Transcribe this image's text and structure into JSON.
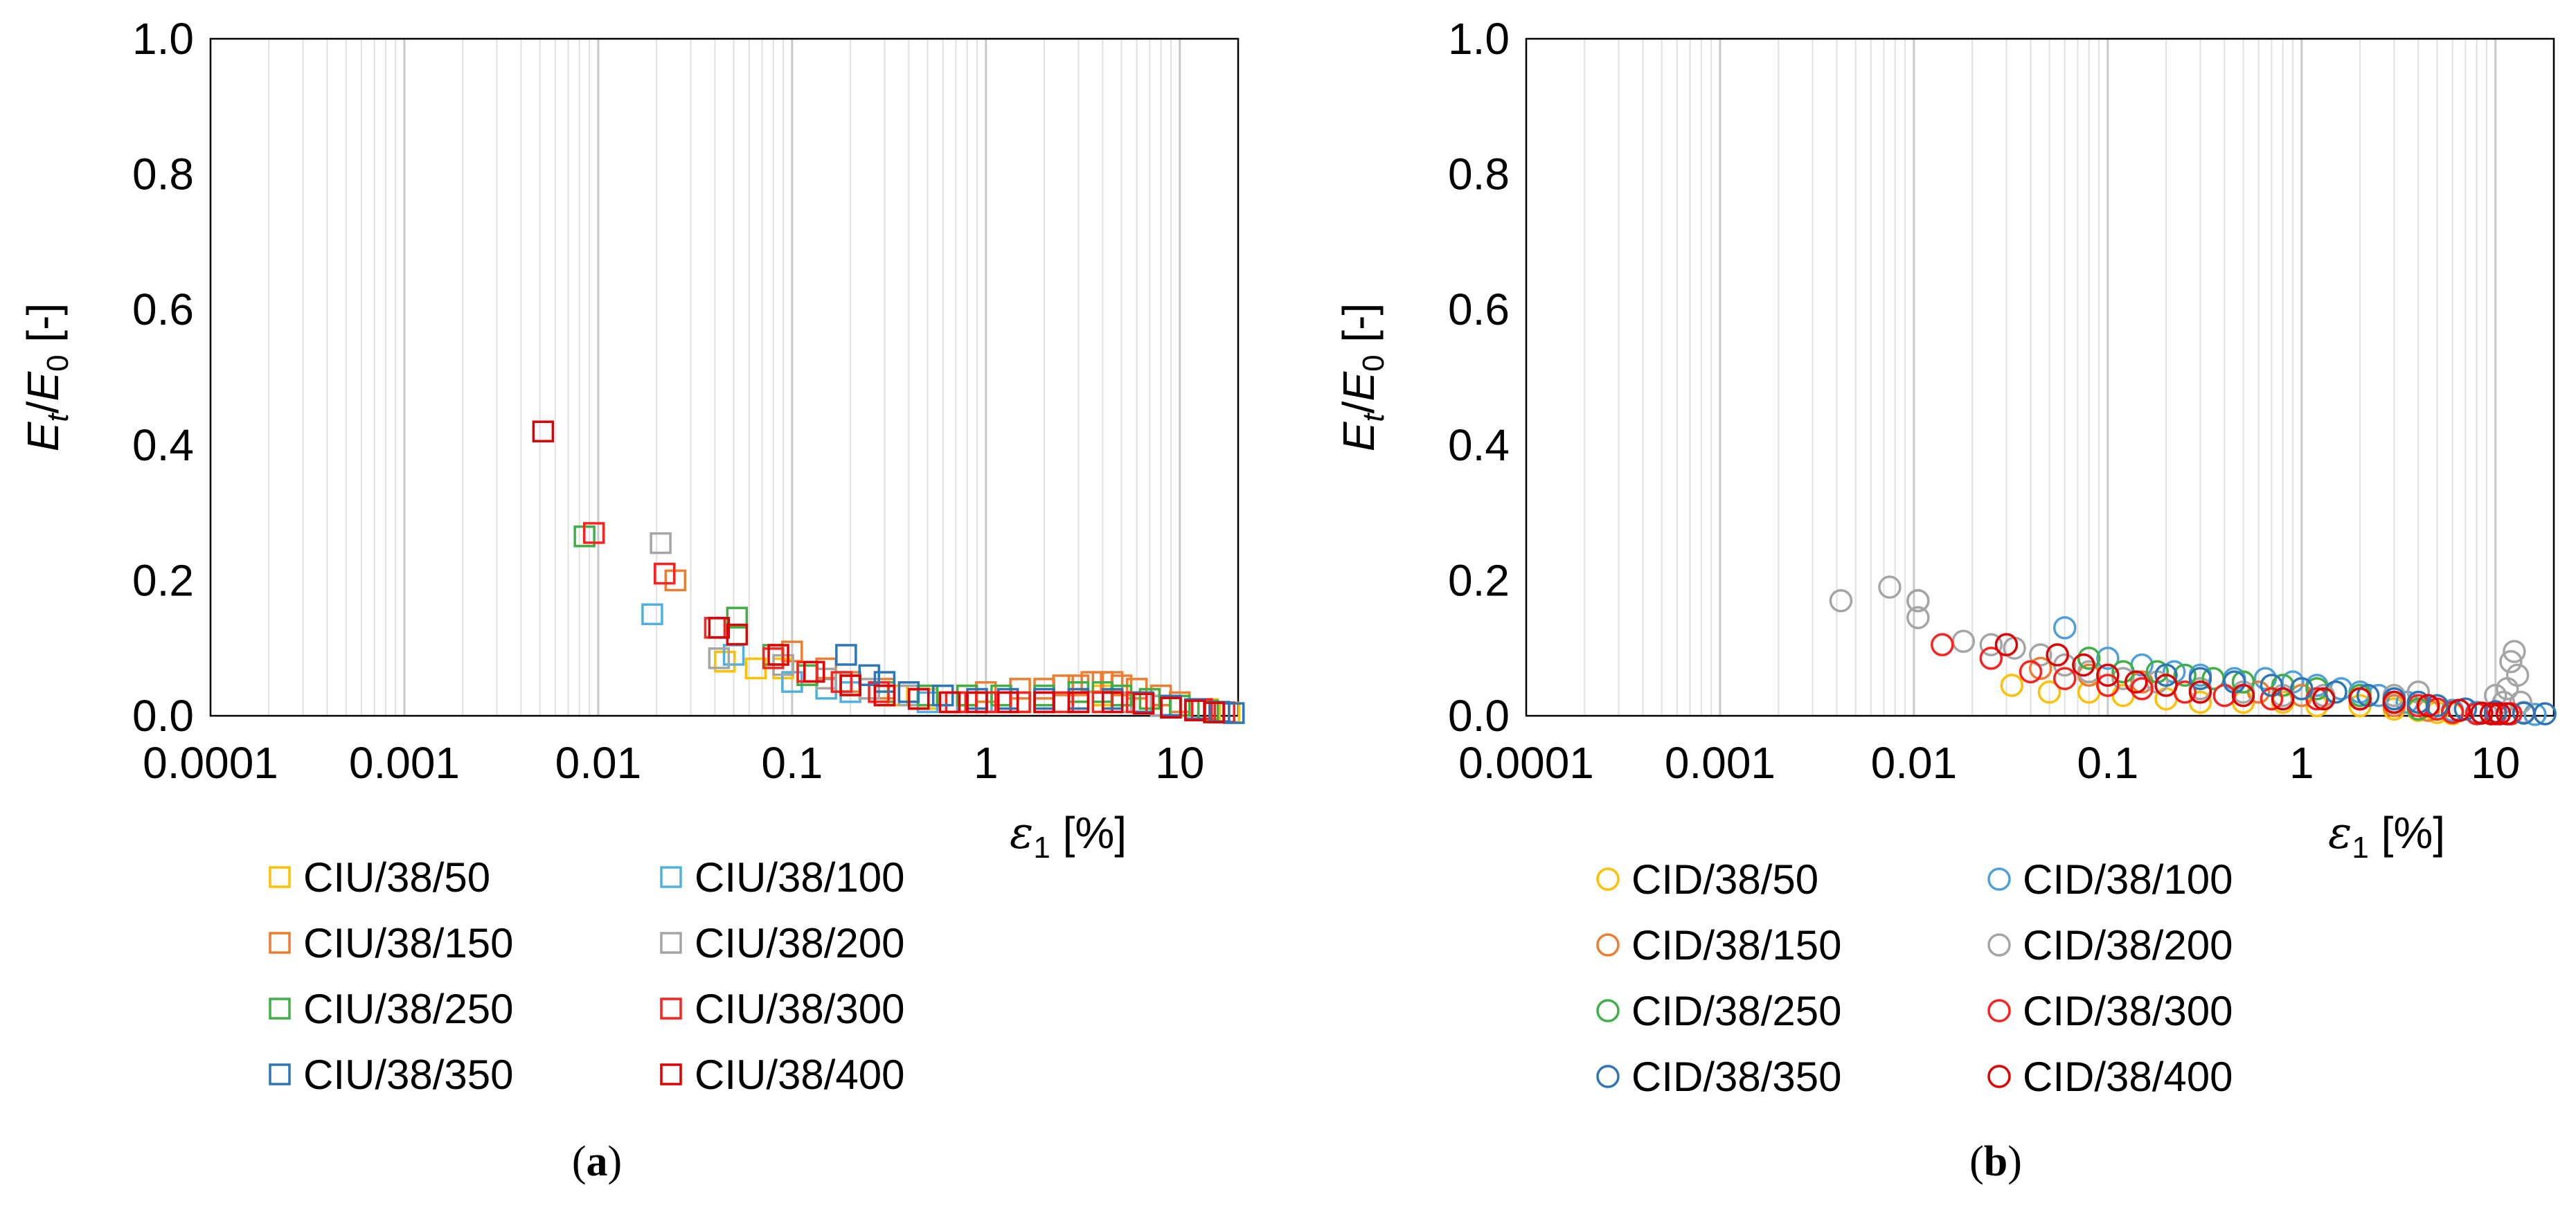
{
  "chart_data": [
    {
      "panel": "a",
      "panel_label": {
        "open": "(",
        "letter": "a",
        "close": ")"
      },
      "type": "scatter",
      "xscale": "log",
      "xlim": [
        0.0001,
        20
      ],
      "ylim": [
        0,
        1.0
      ],
      "xticks": [
        0.0001,
        0.001,
        0.01,
        0.1,
        1,
        10
      ],
      "xtick_labels": [
        "0.0001",
        "0.001",
        "0.01",
        "0.1",
        "1",
        "10"
      ],
      "yticks": [
        0,
        0.2,
        0.4,
        0.6,
        0.8,
        1.0
      ],
      "ytick_labels": [
        "0.0",
        "0.2",
        "0.4",
        "0.6",
        "0.8",
        "1.0"
      ],
      "grid": "vertical minor log gridlines",
      "marker": "square",
      "ylabel": {
        "E": "E",
        "t": "t",
        "slash": "/",
        "E0": "E",
        "zero": "0",
        "unit": " [-]"
      },
      "xlabel": {
        "eps": "ε",
        "sub": "1",
        "unit": " [%]"
      },
      "legend_position": "bottom",
      "series": [
        {
          "name": "CIU/38/50",
          "color": "#FFC000",
          "x": [
            0.045,
            0.065,
            0.09,
            0.12,
            0.18,
            0.25,
            0.35,
            0.5,
            0.7,
            1.0,
            1.5,
            2.0,
            3.0,
            4.0,
            5.0,
            7.0,
            10.0,
            14.0,
            18.0
          ],
          "y": [
            0.08,
            0.07,
            0.07,
            0.06,
            0.05,
            0.04,
            0.03,
            0.025,
            0.02,
            0.02,
            0.02,
            0.02,
            0.025,
            0.03,
            0.03,
            0.025,
            0.015,
            0.01,
            0.005
          ]
        },
        {
          "name": "CIU/38/100",
          "color": "#4FB0E0",
          "x": [
            0.019,
            0.05,
            0.1,
            0.15,
            0.2,
            0.3,
            0.5,
            0.8,
            1.2,
            2.0,
            3.0,
            5.0,
            8.0,
            12.0,
            17.0
          ],
          "y": [
            0.15,
            0.09,
            0.05,
            0.04,
            0.035,
            0.03,
            0.02,
            0.02,
            0.02,
            0.02,
            0.02,
            0.02,
            0.015,
            0.01,
            0.005
          ]
        },
        {
          "name": "CIU/38/150",
          "color": "#ED7D31",
          "x": [
            0.025,
            0.1,
            0.15,
            0.2,
            0.3,
            0.5,
            0.8,
            1.0,
            1.5,
            2.0,
            2.5,
            3.0,
            3.5,
            4.0,
            4.5,
            5.0,
            6.0,
            8.0,
            10.0,
            13.0,
            16.0
          ],
          "y": [
            0.2,
            0.095,
            0.07,
            0.05,
            0.04,
            0.03,
            0.03,
            0.035,
            0.04,
            0.04,
            0.045,
            0.045,
            0.05,
            0.05,
            0.05,
            0.045,
            0.04,
            0.03,
            0.02,
            0.01,
            0.005
          ]
        },
        {
          "name": "CIU/38/200",
          "color": "#A5A5A5",
          "x": [
            0.021,
            0.042,
            0.09,
            0.15,
            0.25,
            0.4,
            0.7,
            1.0,
            2.0,
            3.0,
            5.0,
            8.0,
            12.0,
            16.0
          ],
          "y": [
            0.255,
            0.085,
            0.075,
            0.055,
            0.04,
            0.03,
            0.02,
            0.02,
            0.02,
            0.02,
            0.02,
            0.015,
            0.01,
            0.005
          ]
        },
        {
          "name": "CIU/38/250",
          "color": "#3FAF46",
          "x": [
            0.0085,
            0.052,
            0.08,
            0.12,
            0.2,
            0.3,
            0.5,
            0.8,
            1.2,
            2.0,
            3.0,
            4.0,
            5.0,
            7.0,
            10.0,
            14.0
          ],
          "y": [
            0.265,
            0.145,
            0.09,
            0.06,
            0.045,
            0.035,
            0.03,
            0.03,
            0.03,
            0.03,
            0.035,
            0.035,
            0.03,
            0.025,
            0.015,
            0.008
          ]
        },
        {
          "name": "CIU/38/300",
          "color": "#FF2020",
          "x": [
            0.0095,
            0.022,
            0.04,
            0.08,
            0.12,
            0.18,
            0.28,
            0.45,
            0.7,
            1.0,
            1.5,
            2.5,
            4.0,
            6.0,
            9.0,
            13.0,
            17.0
          ],
          "y": [
            0.27,
            0.21,
            0.13,
            0.085,
            0.065,
            0.05,
            0.035,
            0.025,
            0.02,
            0.02,
            0.02,
            0.02,
            0.02,
            0.02,
            0.015,
            0.01,
            0.005
          ]
        },
        {
          "name": "CIU/38/350",
          "color": "#2E75B6",
          "x": [
            0.19,
            0.25,
            0.3,
            0.4,
            0.6,
            0.9,
            1.3,
            2.0,
            3.0,
            4.5,
            6.5,
            9.0,
            12.0,
            16.0,
            19.0
          ],
          "y": [
            0.09,
            0.06,
            0.05,
            0.035,
            0.03,
            0.025,
            0.025,
            0.025,
            0.025,
            0.025,
            0.02,
            0.015,
            0.01,
            0.006,
            0.004
          ]
        },
        {
          "name": "CIU/38/400",
          "color": "#E00000",
          "x": [
            0.0052,
            0.042,
            0.052,
            0.085,
            0.13,
            0.2,
            0.3,
            0.45,
            0.65,
            0.9,
            1.3,
            2.0,
            3.0,
            4.5,
            6.5,
            9.0,
            12.0,
            15.0
          ],
          "y": [
            0.42,
            0.13,
            0.12,
            0.09,
            0.065,
            0.045,
            0.03,
            0.025,
            0.02,
            0.02,
            0.02,
            0.02,
            0.02,
            0.02,
            0.018,
            0.012,
            0.008,
            0.005
          ]
        }
      ]
    },
    {
      "panel": "b",
      "panel_label": {
        "open": "(",
        "letter": "b",
        "close": ")"
      },
      "type": "scatter",
      "xscale": "log",
      "xlim": [
        0.0001,
        20
      ],
      "ylim": [
        0,
        1.0
      ],
      "xticks": [
        0.0001,
        0.001,
        0.01,
        0.1,
        1,
        10
      ],
      "xtick_labels": [
        "0.0001",
        "0.001",
        "0.01",
        "0.1",
        "1",
        "10"
      ],
      "yticks": [
        0,
        0.2,
        0.4,
        0.6,
        0.8,
        1.0
      ],
      "ytick_labels": [
        "0.0",
        "0.2",
        "0.4",
        "0.6",
        "0.8",
        "1.0"
      ],
      "grid": "vertical minor log gridlines",
      "marker": "circle",
      "ylabel": {
        "E": "E",
        "t": "t",
        "slash": "/",
        "E0": "E",
        "zero": "0",
        "unit": " [-]"
      },
      "xlabel": {
        "eps": "ε",
        "sub": "1",
        "unit": " [%]"
      },
      "legend_position": "bottom",
      "series": [
        {
          "name": "CID/38/50",
          "color": "#FFC000",
          "x": [
            0.032,
            0.05,
            0.08,
            0.12,
            0.2,
            0.3,
            0.5,
            0.8,
            1.2,
            2.0,
            3.0,
            4.0,
            5.0,
            6.0
          ],
          "y": [
            0.045,
            0.035,
            0.035,
            0.03,
            0.025,
            0.02,
            0.02,
            0.02,
            0.015,
            0.015,
            0.01,
            0.008,
            0.005,
            0.003
          ]
        },
        {
          "name": "CID/38/100",
          "color": "#4FA0DA",
          "x": [
            0.06,
            0.1,
            0.15,
            0.22,
            0.3,
            0.45,
            0.65,
            0.9,
            1.2,
            1.6,
            2.0,
            2.5,
            3.0,
            3.5,
            4.0,
            5.0,
            6.0,
            8.0,
            12.0,
            16.0
          ],
          "y": [
            0.13,
            0.085,
            0.075,
            0.065,
            0.06,
            0.055,
            0.055,
            0.05,
            0.045,
            0.04,
            0.035,
            0.03,
            0.025,
            0.02,
            0.015,
            0.01,
            0.008,
            0.005,
            0.003,
            0.002
          ]
        },
        {
          "name": "CID/38/150",
          "color": "#ED7D31",
          "x": [
            0.0105,
            0.045,
            0.08,
            0.15,
            0.3,
            0.6,
            1.0,
            2.0,
            3.0,
            4.5
          ],
          "y": [
            0.17,
            0.07,
            0.06,
            0.05,
            0.04,
            0.035,
            0.03,
            0.025,
            0.015,
            0.008
          ]
        },
        {
          "name": "CID/38/200",
          "color": "#A5A5A5",
          "x": [
            0.0042,
            0.0075,
            0.0105,
            0.0105,
            0.018,
            0.025,
            0.033,
            0.045,
            0.06,
            0.08,
            0.12,
            0.18,
            0.3,
            0.5,
            0.8,
            1.3,
            2.0,
            3.0,
            4.0,
            10.0,
            11.0,
            11.5,
            12.0,
            12.5,
            13.0,
            13.5,
            14.0
          ],
          "y": [
            0.17,
            0.19,
            0.17,
            0.145,
            0.11,
            0.105,
            0.1,
            0.09,
            0.075,
            0.065,
            0.055,
            0.05,
            0.04,
            0.035,
            0.03,
            0.03,
            0.03,
            0.03,
            0.035,
            0.03,
            0.02,
            0.04,
            0.08,
            0.095,
            0.06,
            0.02,
            0.005
          ]
        },
        {
          "name": "CID/38/250",
          "color": "#3FAF46",
          "x": [
            0.08,
            0.12,
            0.18,
            0.25,
            0.35,
            0.5,
            0.8,
            1.2,
            2.0,
            3.0,
            4.0
          ],
          "y": [
            0.085,
            0.065,
            0.065,
            0.06,
            0.055,
            0.05,
            0.045,
            0.04,
            0.03,
            0.02,
            0.01
          ]
        },
        {
          "name": "CID/38/300",
          "color": "#FF2020",
          "x": [
            0.014,
            0.025,
            0.04,
            0.06,
            0.1,
            0.15,
            0.25,
            0.4,
            0.7,
            1.2,
            2.0,
            3.0,
            4.0,
            5.0,
            6.0,
            8.0,
            10.0,
            12.0
          ],
          "y": [
            0.105,
            0.085,
            0.065,
            0.055,
            0.045,
            0.04,
            0.035,
            0.03,
            0.025,
            0.025,
            0.025,
            0.02,
            0.015,
            0.01,
            0.005,
            0.003,
            0.003,
            0.003
          ]
        },
        {
          "name": "CID/38/350",
          "color": "#2E75B6",
          "x": [
            0.2,
            0.3,
            0.45,
            0.7,
            1.0,
            1.5,
            2.2,
            3.0,
            4.0,
            5.0,
            7.0,
            10.0,
            14.0,
            18.0
          ],
          "y": [
            0.06,
            0.055,
            0.05,
            0.045,
            0.04,
            0.035,
            0.03,
            0.025,
            0.02,
            0.015,
            0.01,
            0.006,
            0.004,
            0.003
          ]
        },
        {
          "name": "CID/38/400",
          "color": "#E00000",
          "x": [
            0.03,
            0.055,
            0.075,
            0.1,
            0.14,
            0.2,
            0.3,
            0.5,
            0.8,
            1.3,
            2.0,
            3.0,
            4.5,
            6.5,
            8.5,
            9.5,
            10.5,
            11.5
          ],
          "y": [
            0.105,
            0.09,
            0.075,
            0.06,
            0.05,
            0.045,
            0.035,
            0.03,
            0.025,
            0.025,
            0.025,
            0.02,
            0.015,
            0.008,
            0.004,
            0.003,
            0.003,
            0.003
          ]
        }
      ]
    }
  ]
}
